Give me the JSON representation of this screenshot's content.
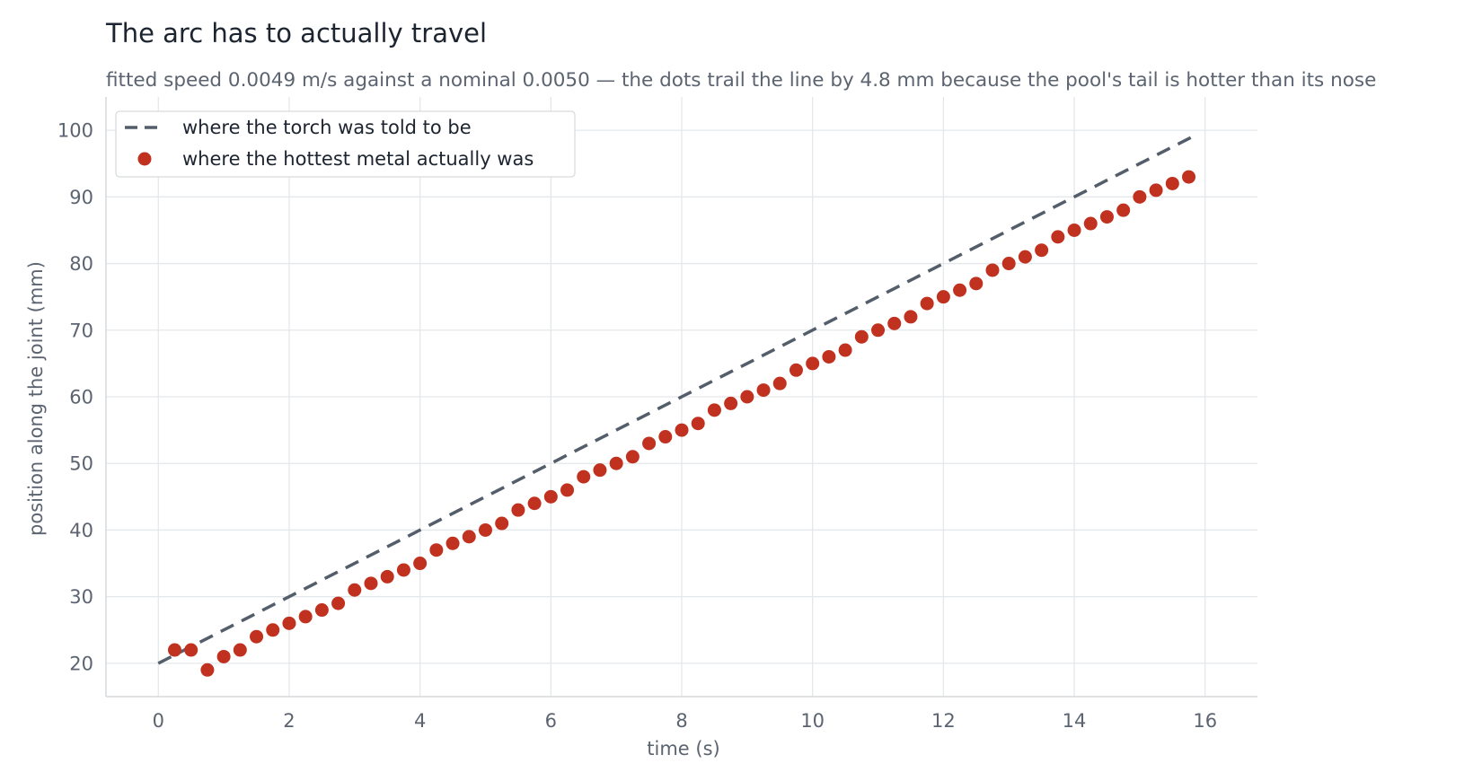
{
  "chart_data": {
    "type": "scatter",
    "title": "The arc has to actually travel",
    "subtitle": "fitted speed 0.0049 m/s against a nominal 0.0050 — the dots trail the line by 4.8 mm because the pool's tail is hotter than its nose",
    "xlabel": "time  (s)",
    "ylabel": "position along the joint  (mm)",
    "xlim": [
      -0.8,
      16.8
    ],
    "ylim": [
      15,
      105
    ],
    "xticks": [
      0,
      2,
      4,
      6,
      8,
      10,
      12,
      14,
      16
    ],
    "yticks": [
      20,
      30,
      40,
      50,
      60,
      70,
      80,
      90,
      100
    ],
    "grid": true,
    "legend_position": "top-left",
    "series": [
      {
        "name": "where the torch was told to be",
        "kind": "dashed-line",
        "color": "#545e6b",
        "x": [
          0,
          15.9
        ],
        "y": [
          20,
          99.5
        ]
      },
      {
        "name": "where the hottest metal actually was",
        "kind": "points",
        "color": "#c0311f",
        "x": [
          0.25,
          0.5,
          0.75,
          1.0,
          1.25,
          1.5,
          1.75,
          2.0,
          2.25,
          2.5,
          2.75,
          3.0,
          3.25,
          3.5,
          3.75,
          4.0,
          4.25,
          4.5,
          4.75,
          5.0,
          5.25,
          5.5,
          5.75,
          6.0,
          6.25,
          6.5,
          6.75,
          7.0,
          7.25,
          7.5,
          7.75,
          8.0,
          8.25,
          8.5,
          8.75,
          9.0,
          9.25,
          9.5,
          9.75,
          10.0,
          10.25,
          10.5,
          10.75,
          11.0,
          11.25,
          11.5,
          11.75,
          12.0,
          12.25,
          12.5,
          12.75,
          13.0,
          13.25,
          13.5,
          13.75,
          14.0,
          14.25,
          14.5,
          14.75,
          15.0,
          15.25,
          15.5,
          15.75
        ],
        "y": [
          22,
          22,
          19,
          21,
          22,
          24,
          25,
          26,
          27,
          28,
          29,
          31,
          32,
          33,
          34,
          35,
          37,
          38,
          39,
          40,
          41,
          43,
          44,
          45,
          46,
          48,
          49,
          50,
          51,
          53,
          54,
          55,
          56,
          58,
          59,
          60,
          61,
          62,
          64,
          65,
          66,
          67,
          69,
          70,
          71,
          72,
          74,
          75,
          76,
          77,
          79,
          80,
          81,
          82,
          84,
          85,
          86,
          87,
          88,
          90,
          91,
          92,
          93
        ]
      }
    ]
  }
}
